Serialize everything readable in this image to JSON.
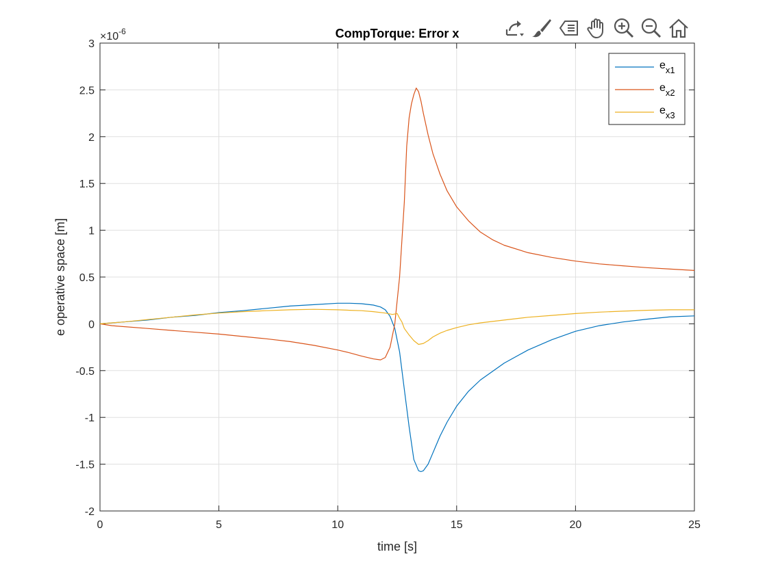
{
  "toolbar": {
    "items": [
      {
        "name": "export-icon"
      },
      {
        "name": "brush-icon"
      },
      {
        "name": "datatips-icon"
      },
      {
        "name": "pan-hand-icon"
      },
      {
        "name": "zoom-in-icon"
      },
      {
        "name": "zoom-out-icon"
      },
      {
        "name": "home-icon"
      }
    ]
  },
  "chart_data": {
    "type": "line",
    "title": "CompTorque: Error x",
    "xlabel": "time [s]",
    "ylabel": "e operative space [m]",
    "exponent_base": "×10",
    "exponent_power": "-6",
    "xlim": [
      0,
      25
    ],
    "ylim": [
      -2,
      3
    ],
    "xticks": [
      0,
      5,
      10,
      15,
      20,
      25
    ],
    "xtick_labels": [
      "0",
      "5",
      "10",
      "15",
      "20",
      "25"
    ],
    "yticks": [
      -2,
      -1.5,
      -1,
      -0.5,
      0,
      0.5,
      1,
      1.5,
      2,
      2.5,
      3
    ],
    "ytick_labels": [
      "-2",
      "-1.5",
      "-1",
      "-0.5",
      "0",
      "0.5",
      "1",
      "1.5",
      "2",
      "2.5",
      "3"
    ],
    "grid": true,
    "legend_position": "top-right",
    "series": [
      {
        "legend_main": "e",
        "legend_sub": "x1",
        "color": "#0072BD",
        "x": [
          0,
          0.5,
          1,
          2,
          3,
          4,
          5,
          6,
          7,
          8,
          9,
          10,
          10.5,
          11,
          11.5,
          11.8,
          12.0,
          12.2,
          12.4,
          12.6,
          12.8,
          13.0,
          13.2,
          13.4,
          13.5,
          13.6,
          13.8,
          14.0,
          14.3,
          14.6,
          15,
          15.5,
          16,
          17,
          18,
          19,
          20,
          21,
          22,
          23,
          24,
          25
        ],
        "y": [
          0,
          0.01,
          0.02,
          0.04,
          0.07,
          0.09,
          0.12,
          0.14,
          0.165,
          0.19,
          0.205,
          0.22,
          0.22,
          0.215,
          0.2,
          0.18,
          0.15,
          0.08,
          -0.05,
          -0.3,
          -0.7,
          -1.1,
          -1.45,
          -1.57,
          -1.58,
          -1.57,
          -1.5,
          -1.38,
          -1.2,
          -1.05,
          -0.88,
          -0.72,
          -0.6,
          -0.42,
          -0.28,
          -0.17,
          -0.08,
          -0.02,
          0.02,
          0.05,
          0.075,
          0.085
        ]
      },
      {
        "legend_main": "e",
        "legend_sub": "x2",
        "color": "#D95319",
        "x": [
          0,
          0.5,
          1,
          2,
          3,
          4,
          5,
          6,
          7,
          8,
          9,
          10,
          10.5,
          11,
          11.5,
          11.8,
          12.0,
          12.2,
          12.4,
          12.6,
          12.8,
          12.9,
          13.0,
          13.1,
          13.2,
          13.3,
          13.4,
          13.5,
          13.6,
          13.8,
          14.0,
          14.3,
          14.6,
          15,
          15.5,
          16,
          16.5,
          17,
          18,
          19,
          20,
          21,
          22,
          23,
          24,
          25
        ],
        "y": [
          0,
          -0.02,
          -0.03,
          -0.05,
          -0.07,
          -0.09,
          -0.11,
          -0.135,
          -0.16,
          -0.19,
          -0.23,
          -0.28,
          -0.31,
          -0.345,
          -0.375,
          -0.385,
          -0.36,
          -0.25,
          0.0,
          0.5,
          1.3,
          1.9,
          2.2,
          2.35,
          2.45,
          2.52,
          2.48,
          2.38,
          2.25,
          2.02,
          1.82,
          1.6,
          1.42,
          1.25,
          1.1,
          0.98,
          0.9,
          0.84,
          0.76,
          0.71,
          0.67,
          0.64,
          0.62,
          0.6,
          0.585,
          0.57
        ]
      },
      {
        "legend_main": "e",
        "legend_sub": "x3",
        "color": "#EDB120",
        "x": [
          0,
          0.5,
          1,
          2,
          3,
          4,
          5,
          6,
          7,
          8,
          9,
          10,
          10.5,
          11,
          11.5,
          12.0,
          12.3,
          12.5,
          12.6,
          12.7,
          12.8,
          13.0,
          13.2,
          13.4,
          13.6,
          13.8,
          14.0,
          14.3,
          14.6,
          15,
          15.5,
          16,
          17,
          18,
          19,
          20,
          21,
          22,
          23,
          24,
          25
        ],
        "y": [
          0,
          0.01,
          0.02,
          0.045,
          0.07,
          0.095,
          0.115,
          0.13,
          0.14,
          0.15,
          0.155,
          0.15,
          0.145,
          0.14,
          0.13,
          0.115,
          0.1,
          0.11,
          0.06,
          0.02,
          -0.05,
          -0.12,
          -0.18,
          -0.22,
          -0.21,
          -0.18,
          -0.14,
          -0.1,
          -0.07,
          -0.04,
          -0.01,
          0.01,
          0.04,
          0.07,
          0.09,
          0.11,
          0.125,
          0.135,
          0.145,
          0.15,
          0.15
        ]
      }
    ]
  }
}
